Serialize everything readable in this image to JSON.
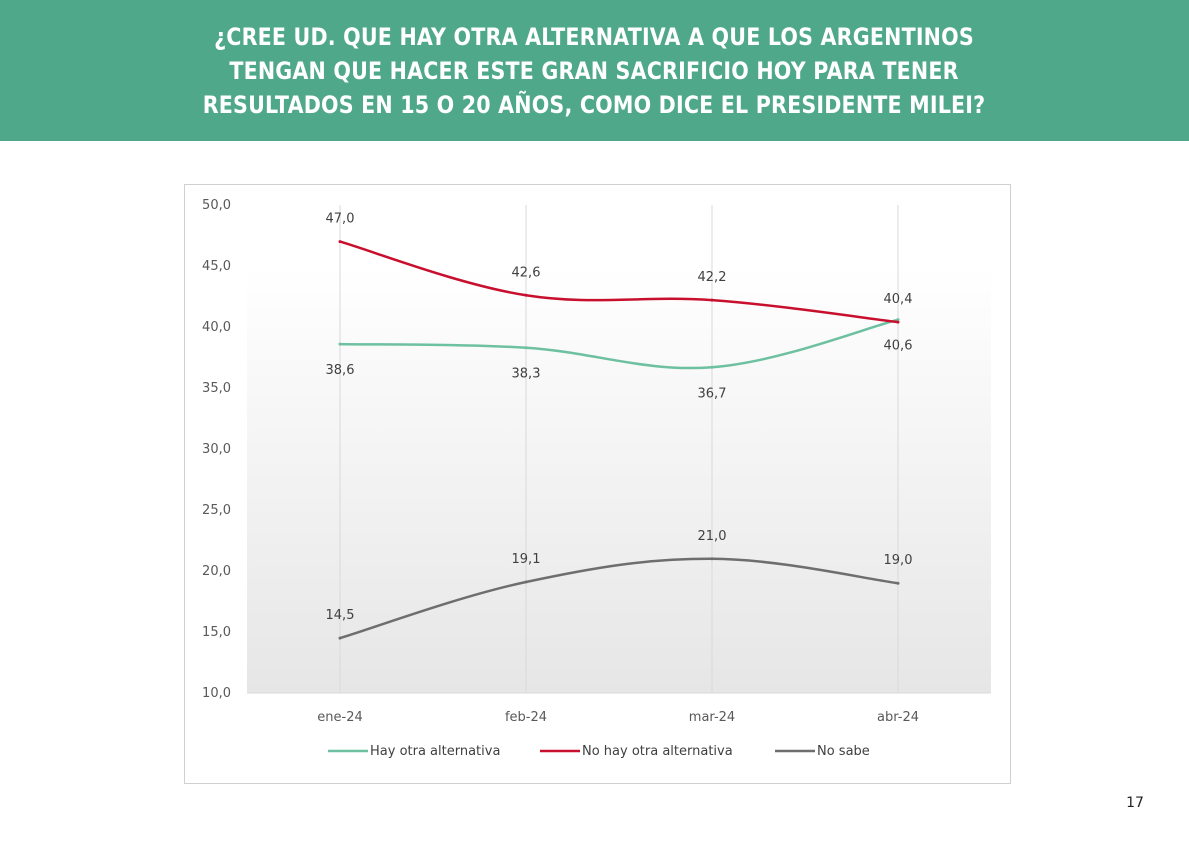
{
  "header": {
    "title": "¿CREE UD. QUE HAY OTRA ALTERNATIVA A QUE LOS ARGENTINOS\nTENGAN QUE HACER ESTE GRAN SACRIFICIO HOY PARA TENER\nRESULTADOS EN 15 O 20 AÑOS, COMO DICE EL PRESIDENTE MILEI?"
  },
  "page_number": "17",
  "colors": {
    "header_band": "#4fa88a",
    "series_hay": "#6dc0a0",
    "series_no_hay": "#c8102e",
    "series_no_sabe": "#6e6e6e"
  },
  "chart_data": {
    "type": "line",
    "title": "",
    "xlabel": "",
    "ylabel": "",
    "categories": [
      "ene-24",
      "feb-24",
      "mar-24",
      "abr-24"
    ],
    "ylim": [
      10,
      50
    ],
    "yticks": [
      10,
      15,
      20,
      25,
      30,
      35,
      40,
      45,
      50
    ],
    "ytick_labels": [
      "10,0",
      "15,0",
      "20,0",
      "25,0",
      "30,0",
      "35,0",
      "40,0",
      "45,0",
      "50,0"
    ],
    "grid": "vertical lines at categories",
    "legend_position": "bottom",
    "series": [
      {
        "name": "Hay otra alternativa",
        "color": "#6dc0a0",
        "values": [
          38.6,
          38.3,
          36.7,
          40.6
        ],
        "labels": [
          "38,6",
          "38,3",
          "36,7",
          "40,6"
        ],
        "label_position": "below"
      },
      {
        "name": "No hay otra alternativa",
        "color": "#c8102e",
        "values": [
          47.0,
          42.6,
          42.2,
          40.4
        ],
        "labels": [
          "47,0",
          "42,6",
          "42,2",
          "40,4"
        ],
        "label_position": "above"
      },
      {
        "name": "No sabe",
        "color": "#6e6e6e",
        "values": [
          14.5,
          19.1,
          21.0,
          19.0
        ],
        "labels": [
          "14,5",
          "19,1",
          "21,0",
          "19,0"
        ],
        "label_position": "above"
      }
    ]
  }
}
